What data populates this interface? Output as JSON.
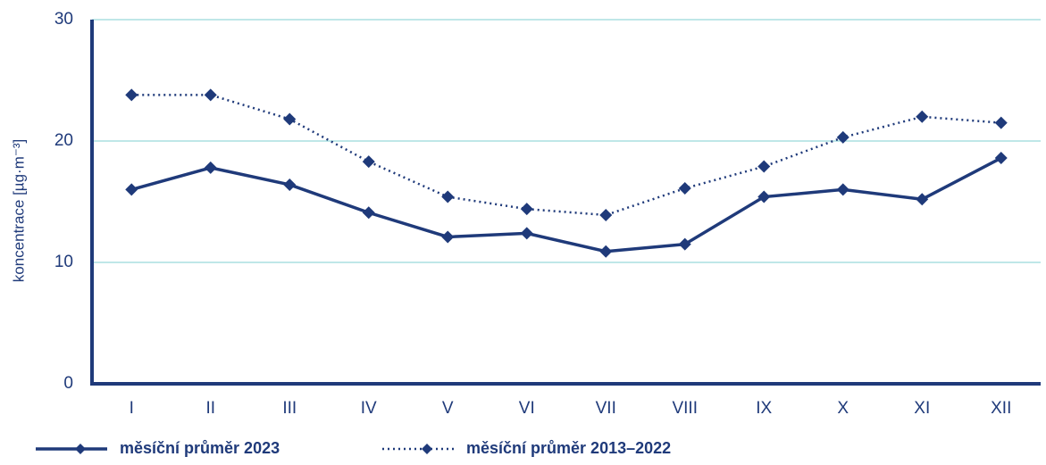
{
  "chart_data": {
    "type": "line",
    "y_label": "koncentrace [µg·m⁻³]",
    "categories": [
      "I",
      "II",
      "III",
      "IV",
      "V",
      "VI",
      "VII",
      "VIII",
      "IX",
      "X",
      "XI",
      "XII"
    ],
    "series": [
      {
        "name": "měsíční průměr 2023",
        "color": "#1f3a7a",
        "linestyle": "solid",
        "values": [
          16.0,
          17.8,
          16.4,
          14.1,
          12.1,
          12.4,
          10.9,
          11.5,
          15.4,
          16.0,
          15.2,
          18.6
        ]
      },
      {
        "name": "měsíční průměr 2013–2022",
        "color": "#1f3a7a",
        "linestyle": "dotted",
        "values": [
          23.8,
          23.8,
          21.8,
          18.3,
          15.4,
          14.4,
          13.9,
          16.1,
          17.9,
          20.3,
          22.0,
          21.5
        ]
      }
    ],
    "ylim": [
      0,
      30
    ],
    "yticks": [
      0,
      10,
      20,
      30
    ],
    "grid": true,
    "grid_color": "#7fcfd0"
  }
}
